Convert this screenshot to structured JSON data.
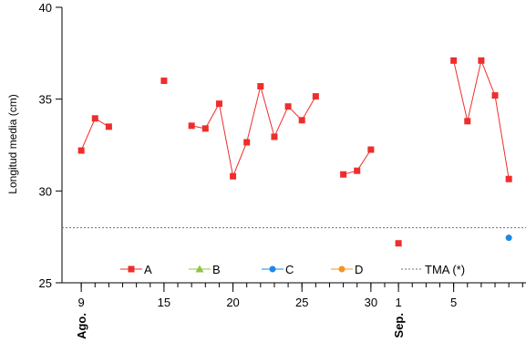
{
  "chart_data": {
    "type": "line",
    "ylabel": "Longitud media (cm)",
    "ylim": [
      25,
      40
    ],
    "y_ticks": [
      25,
      30,
      35,
      40
    ],
    "x_tick_labels": [
      {
        "date": "2023-08-09",
        "label": "9"
      },
      {
        "date": "2023-08-15",
        "label": "15"
      },
      {
        "date": "2023-08-20",
        "label": "20"
      },
      {
        "date": "2023-08-25",
        "label": "25"
      },
      {
        "date": "2023-08-30",
        "label": "30"
      },
      {
        "date": "2023-09-01",
        "label": "1"
      },
      {
        "date": "2023-09-05",
        "label": "5"
      }
    ],
    "month_labels": [
      {
        "date": "2023-08-09",
        "label": "Ago."
      },
      {
        "date": "2023-09-01",
        "label": "Sep."
      }
    ],
    "xlim": [
      "2023-08-08",
      "2023-09-11"
    ],
    "series": [
      {
        "name": "A",
        "color": "#ee2d2d",
        "marker": "square",
        "segments": [
          [
            [
              "2023-08-09",
              32.2
            ],
            [
              "2023-08-10",
              33.95
            ],
            [
              "2023-08-11",
              33.5
            ]
          ],
          [
            [
              "2023-08-15",
              36.0
            ]
          ],
          [
            [
              "2023-08-17",
              33.55
            ],
            [
              "2023-08-18",
              33.4
            ],
            [
              "2023-08-19",
              34.75
            ],
            [
              "2023-08-20",
              30.8
            ],
            [
              "2023-08-21",
              32.65
            ],
            [
              "2023-08-22",
              35.7
            ],
            [
              "2023-08-23",
              32.95
            ],
            [
              "2023-08-24",
              34.6
            ],
            [
              "2023-08-25",
              33.85
            ],
            [
              "2023-08-26",
              35.15
            ]
          ],
          [
            [
              "2023-08-28",
              30.9
            ],
            [
              "2023-08-29",
              31.1
            ],
            [
              "2023-08-30",
              32.25
            ]
          ],
          [
            [
              "2023-09-01",
              27.15
            ]
          ],
          [
            [
              "2023-09-05",
              37.1
            ],
            [
              "2023-09-06",
              33.8
            ],
            [
              "2023-09-07",
              37.1
            ],
            [
              "2023-09-08",
              35.2
            ],
            [
              "2023-09-09",
              30.65
            ]
          ]
        ]
      },
      {
        "name": "B",
        "color": "#8cc63f",
        "marker": "triangle",
        "segments": []
      },
      {
        "name": "C",
        "color": "#1e88e5",
        "marker": "circle",
        "segments": [
          [
            [
              "2023-09-09",
              27.45
            ]
          ]
        ]
      },
      {
        "name": "D",
        "color": "#f7941d",
        "marker": "circle",
        "segments": []
      }
    ],
    "reference_lines": [
      {
        "name": "TMA (*)",
        "y": 28.0,
        "style": "dotted",
        "color": "#707070"
      }
    ],
    "legend": {
      "placement": "bottom-inside",
      "entries": [
        "A",
        "B",
        "C",
        "D",
        "TMA (*)"
      ]
    },
    "grid": false
  }
}
